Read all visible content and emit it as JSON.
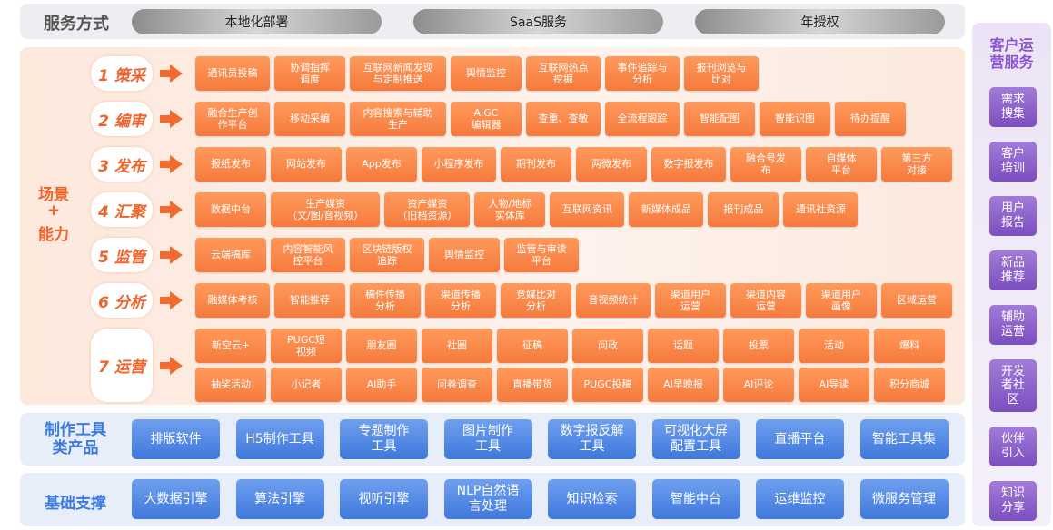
{
  "service": {
    "title": "服务方式",
    "options": [
      "本地化部署",
      "SaaS服务",
      "年授权"
    ]
  },
  "scenario": {
    "title": [
      "场景",
      "+",
      "能力"
    ],
    "stages": [
      {
        "label": "1 策采",
        "rows": [
          [
            "通讯员投稿",
            "协调指挥\n调度",
            "互联网新闻发现\n与定制推送",
            "舆情监控",
            "互联网热点\n挖掘",
            "事件追踪与\n分析",
            "报刊浏览与\n比对"
          ]
        ]
      },
      {
        "label": "2 编审",
        "rows": [
          [
            "融合生产创\n作平台",
            "移动采编",
            "内容搜索与辅助\n生产",
            "AIGC\n编辑器",
            "查重、查敏",
            "全流程跟踪",
            "智能配图",
            "智能识图",
            "待办提醒"
          ]
        ]
      },
      {
        "label": "3 发布",
        "rows": [
          [
            "报纸发布",
            "网站发布",
            "App发布",
            "小程序发布",
            "期刊发布",
            "两微发布",
            "数字报发布",
            "融合号发\n布",
            "自媒体\n平台",
            "第三方\n对接"
          ]
        ]
      },
      {
        "label": "4 汇聚",
        "rows": [
          [
            "数据中台",
            "生产媒资\n（文/图/音视频）",
            "资产媒资\n（旧档资源）",
            "人物/地标\n实体库",
            "互联网资讯",
            "新媒体成品",
            "报刊成品",
            "通讯社资源"
          ]
        ]
      },
      {
        "label": "5 监管",
        "rows": [
          [
            "云端稿库",
            "内容智能风\n控平台",
            "区块链版权\n追踪",
            "舆情监控",
            "监管与审读\n平台"
          ]
        ]
      },
      {
        "label": "6 分析",
        "rows": [
          [
            "融媒体考核",
            "智能推荐",
            "稿件传播\n分析",
            "渠道传播\n分析",
            "竞媒比对\n分析",
            "音视频统计",
            "渠道用户\n运营",
            "渠道内容\n运营",
            "渠道用户\n画像",
            "区域运营"
          ]
        ]
      },
      {
        "label": "7 运营",
        "rows": [
          [
            "新空云+",
            "PUGC短\n视频",
            "朋友圈",
            "社圈",
            "征稿",
            "问政",
            "话题",
            "投票",
            "活动",
            "爆料"
          ],
          [
            "抽奖活动",
            "小记者",
            "AI助手",
            "问卷调查",
            "直播带货",
            "PUGC投稿",
            "AI早晚报",
            "AI评论",
            "AI导读",
            "积分商城"
          ]
        ]
      }
    ]
  },
  "tools": {
    "title": "制作工具\n类产品",
    "items": [
      "排版软件",
      "H5制作工具",
      "专题制作\n工具",
      "图片制作\n工具",
      "数字报反解\n工具",
      "可视化大屏\n配置工具",
      "直播平台",
      "智能工具集"
    ]
  },
  "base": {
    "title": "基础支撑",
    "items": [
      "大数据引擎",
      "算法引擎",
      "视听引擎",
      "NLP自然语\n言处理",
      "知识检索",
      "智能中台",
      "运维监控",
      "微服务管理"
    ]
  },
  "customer": {
    "title": "客户运\n营服务",
    "items": [
      "需求\n搜集",
      "客户\n培训",
      "用户\n报告",
      "新品\n推荐",
      "辅助\n运营",
      "开发\n者社\n区",
      "伙伴\n引入",
      "知识\n分享"
    ]
  }
}
